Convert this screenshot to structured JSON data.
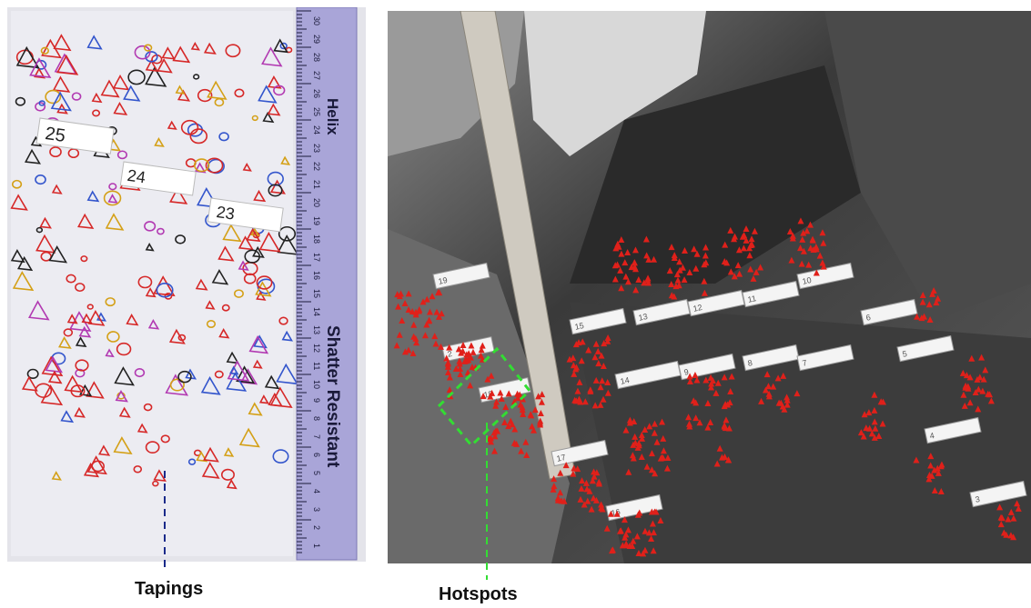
{
  "captions": {
    "left": "Tapings",
    "right": "Hotspots"
  },
  "tape_labels": [
    "25",
    "24",
    "23"
  ],
  "ruler": {
    "brand": "Helix",
    "text": "Shatter Resistant",
    "ticks": [
      "30",
      "29",
      "28",
      "27",
      "26",
      "25",
      "24",
      "23",
      "22",
      "21",
      "20",
      "19",
      "18",
      "17",
      "16",
      "15",
      "14",
      "13",
      "12",
      "11",
      "10",
      "9",
      "8",
      "7",
      "6",
      "5",
      "4",
      "3",
      "2",
      "1"
    ]
  },
  "hotspot_labels": [
    "19",
    "2",
    "18",
    "17",
    "16",
    "15",
    "14",
    "13",
    "12",
    "11",
    "10",
    "9",
    "8",
    "7",
    "6",
    "5",
    "4",
    "3"
  ],
  "colors": {
    "marker": "#e0201a",
    "highlight_box": "#33dd33",
    "taping_line": "#1a2a8a",
    "hotspot_line": "#33dd33",
    "ruler": "#a8a4d8"
  }
}
